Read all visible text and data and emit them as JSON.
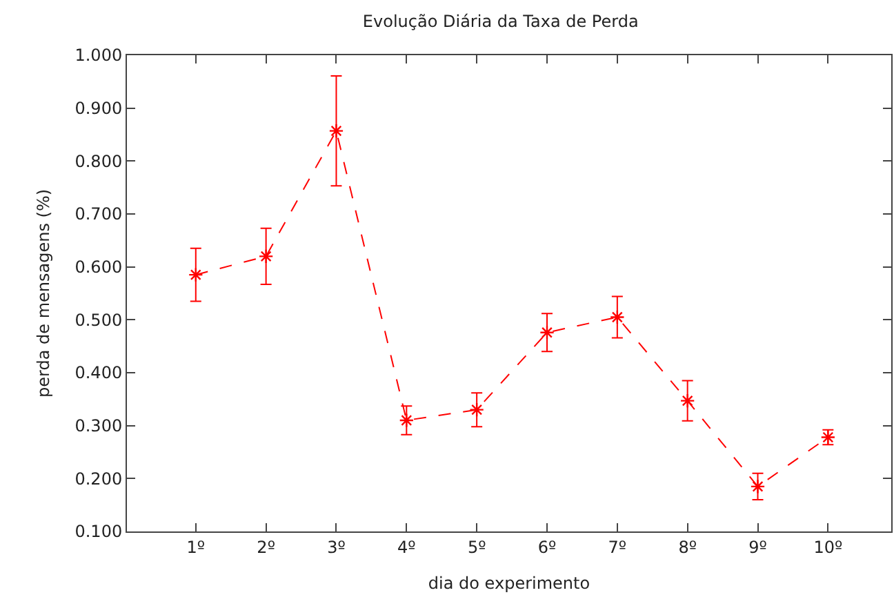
{
  "chart_data": {
    "type": "line",
    "title": "Evolução Diária da Taxa de Perda",
    "xlabel": "dia do experimento",
    "ylabel": "perda de mensagens (%)",
    "categories": [
      "1º",
      "2º",
      "3º",
      "4º",
      "5º",
      "6º",
      "7º",
      "8º",
      "9º",
      "10º"
    ],
    "series": [
      {
        "color": "#ff0000",
        "values": [
          0.585,
          0.62,
          0.857,
          0.31,
          0.33,
          0.476,
          0.505,
          0.347,
          0.185,
          0.278
        ],
        "errors": [
          0.05,
          0.053,
          0.104,
          0.027,
          0.032,
          0.036,
          0.039,
          0.038,
          0.025,
          0.014
        ]
      }
    ],
    "ylim": [
      0.1,
      1.0
    ],
    "yticks": [
      {
        "value": 0.1,
        "label": "0.100"
      },
      {
        "value": 0.2,
        "label": "0.200"
      },
      {
        "value": 0.3,
        "label": "0.300"
      },
      {
        "value": 0.4,
        "label": "0.400"
      },
      {
        "value": 0.5,
        "label": "0.500"
      },
      {
        "value": 0.6,
        "label": "0.600"
      },
      {
        "value": 0.7,
        "label": "0.700"
      },
      {
        "value": 0.8,
        "label": "0.800"
      },
      {
        "value": 0.9,
        "label": "0.900"
      },
      {
        "value": 1.0,
        "label": "1.000"
      }
    ],
    "marker": "cross",
    "line_style": "dashed"
  }
}
